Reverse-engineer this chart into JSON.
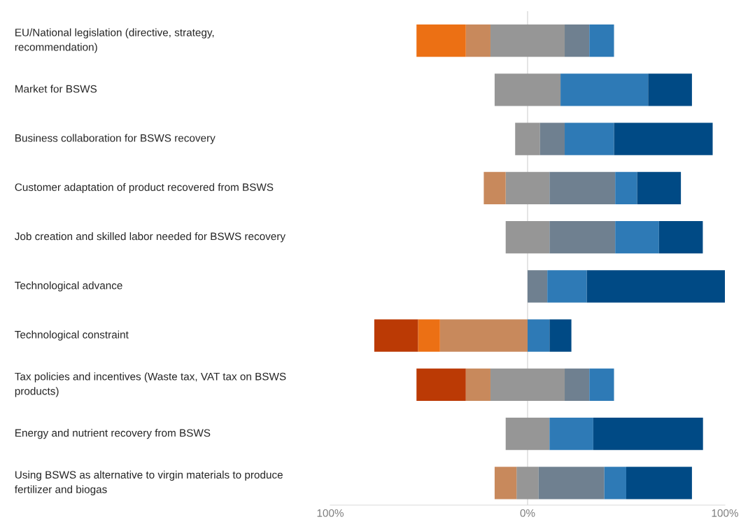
{
  "chart_data": {
    "type": "bar",
    "orientation": "horizontal",
    "stacked": true,
    "categories": [
      "EU/National legislation (directive, strategy, recommendation)",
      "Market for BSWS",
      "Business collaboration for BSWS recovery",
      "Customer adaptation of product recovered from BSWS",
      "Job creation and skilled labor needed for BSWS recovery",
      "Technological advance",
      "Technological constraint",
      "Tax policies and incentives (Waste tax, VAT tax on BSWS products)",
      "Energy and nutrient recovery from BSWS",
      "Using BSWS as alternative to virgin materials to produce fertilizer and biogas"
    ],
    "series": [
      {
        "color": "#969696",
        "values": [
          -18.8,
          -16.7,
          -6.3,
          -11.1,
          -11.1,
          0,
          0,
          -18.8,
          -11.1,
          -5.6
        ]
      },
      {
        "color": "#c8895c",
        "values": [
          -12.5,
          0,
          0,
          -11.1,
          0,
          0,
          -44.4,
          -12.5,
          0,
          -11.1
        ]
      },
      {
        "color": "#ec7014",
        "values": [
          -25,
          0,
          0,
          0,
          0,
          0,
          -11.1,
          0,
          0,
          0
        ]
      },
      {
        "color": "#bb3a05",
        "values": [
          0,
          0,
          0,
          0,
          0,
          0,
          -22.2,
          -25,
          0,
          0
        ]
      },
      {
        "color": "#969696",
        "values": [
          18.8,
          16.7,
          6.3,
          11.1,
          11.1,
          0,
          0,
          18.8,
          11.1,
          5.6
        ]
      },
      {
        "color": "#6f8090",
        "values": [
          12.5,
          0,
          12.5,
          33.3,
          33.3,
          10,
          0,
          12.5,
          0,
          33.3
        ]
      },
      {
        "color": "#2e7ab6",
        "values": [
          12.5,
          44.4,
          25,
          11.1,
          22.2,
          20,
          11.1,
          12.5,
          22.2,
          11.1
        ]
      },
      {
        "color": "#004a85",
        "values": [
          0,
          22.2,
          50,
          22.2,
          22.2,
          70,
          11.1,
          0,
          55.6,
          33.3
        ]
      }
    ],
    "xlim": [
      -100,
      100
    ],
    "xticks": [
      {
        "value": -100,
        "label": "100%"
      },
      {
        "value": 0,
        "label": "0%"
      },
      {
        "value": 100,
        "label": "100%"
      }
    ],
    "ref_lines": [
      {
        "axis": "x",
        "value": 0,
        "label": null,
        "color": "#d9d9d9"
      }
    ]
  }
}
